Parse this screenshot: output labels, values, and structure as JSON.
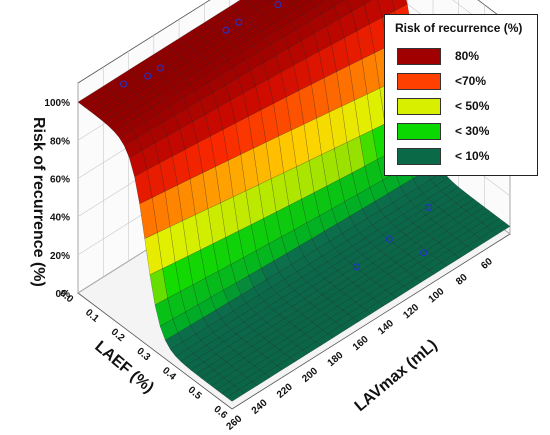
{
  "chart_data": {
    "type": "surface3d",
    "title": "",
    "zlabel": "Risk of recurrence (%)",
    "xlabel": "LAEF (%)",
    "ylabel": "LAVmax (mL)",
    "z_ticks": [
      "0%",
      "20%",
      "40%",
      "60%",
      "80%",
      "100%"
    ],
    "x_ticks": [
      "0.0",
      "0.1",
      "0.2",
      "0.3",
      "0.4",
      "0.5",
      "0.6"
    ],
    "y_ticks": [
      "260",
      "240",
      "220",
      "200",
      "180",
      "160",
      "140",
      "120",
      "100",
      "80",
      "60"
    ],
    "xlim": [
      0,
      0.6
    ],
    "ylim": [
      40,
      260
    ],
    "zlim": [
      0,
      1.1
    ],
    "surface": {
      "model": "logistic",
      "description_values": {
        "high_plateau": 1.0,
        "low_plateau": 0.04,
        "midpoint_laef": 0.25
      }
    },
    "points": [
      {
        "laef": 0.03,
        "lav": 230,
        "risk": 1.0
      },
      {
        "laef": 0.05,
        "lav": 215,
        "risk": 1.0
      },
      {
        "laef": 0.05,
        "lav": 205,
        "risk": 1.0
      },
      {
        "laef": 0.06,
        "lav": 155,
        "risk": 1.0
      },
      {
        "laef": 0.06,
        "lav": 145,
        "risk": 1.0
      },
      {
        "laef": 0.08,
        "lav": 118,
        "risk": 1.0
      },
      {
        "laef": 0.09,
        "lav": 100,
        "risk": 1.0
      },
      {
        "laef": 0.02,
        "lav": 48,
        "risk": 1.0
      },
      {
        "laef": 0.42,
        "lav": 125,
        "risk": 0.0
      },
      {
        "laef": 0.4,
        "lav": 95,
        "risk": 0.0
      },
      {
        "laef": 0.5,
        "lav": 88,
        "risk": 0.0
      },
      {
        "laef": 0.38,
        "lav": 60,
        "risk": 0.0
      }
    ],
    "legend": {
      "title": "Risk of recurrence (%)",
      "placement": "top-right",
      "items": [
        {
          "label": "80%",
          "color": "#a00000"
        },
        {
          "label": "<70%",
          "color": "#ff4000"
        },
        {
          "label": "< 50%",
          "color": "#d8ef00"
        },
        {
          "label": "< 30%",
          "color": "#0ad800"
        },
        {
          "label": "< 10%",
          "color": "#0a6a48"
        }
      ]
    },
    "grid": true
  }
}
